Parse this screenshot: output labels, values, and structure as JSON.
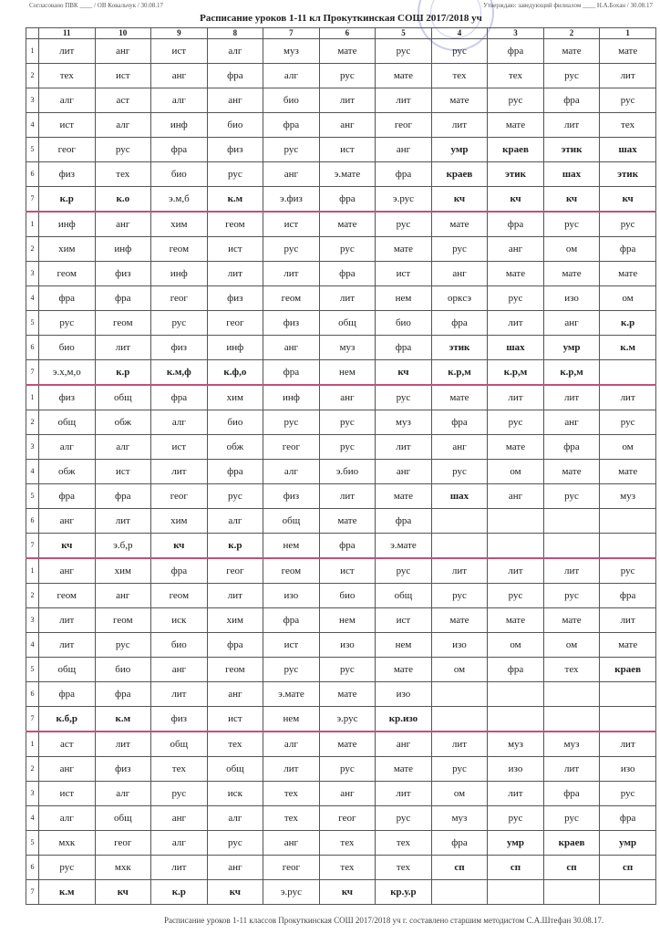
{
  "header": {
    "agreed": "Согласовано ПВК ____ / ОВ Ковальчук / 30.08.17",
    "title": "Расписание уроков 1-11 кл  Прокуткинская СОШ   2017/2018 уч",
    "approved": "Утверждаю: заведующий филиалом ____ Н.А.Бохан / 30.08.17"
  },
  "stamp_text": "Прокуткинская СОШ",
  "classes": [
    "11",
    "10",
    "9",
    "8",
    "7",
    "6",
    "5",
    "4",
    "3",
    "2",
    "1"
  ],
  "lesson_numbers": [
    "1",
    "2",
    "3",
    "4",
    "5",
    "6",
    "7"
  ],
  "schedule": {
    "11": [
      [
        "лит",
        "тех",
        "алг",
        "ист",
        "геог",
        "физ",
        "к.р"
      ],
      [
        "инф",
        "хим",
        "геом",
        "фра",
        "рус",
        "био",
        "э.х,м,о"
      ],
      [
        "физ",
        "общ",
        "алг",
        "обж",
        "фра",
        "анг",
        "кч"
      ],
      [
        "анг",
        "геом",
        "лит",
        "лит",
        "общ",
        "фра",
        "к.б,р"
      ],
      [
        "аст",
        "анг",
        "ист",
        "алг",
        "мхк",
        "рус",
        "к.м"
      ]
    ],
    "10": [
      [
        "анг",
        "ист",
        "аст",
        "алг",
        "рус",
        "тех",
        "к.о"
      ],
      [
        "анг",
        "инф",
        "физ",
        "фра",
        "геом",
        "лит",
        "к.р"
      ],
      [
        "общ",
        "обж",
        "алг",
        "ист",
        "фра",
        "лит",
        "э.б,р"
      ],
      [
        "хим",
        "анг",
        "геом",
        "рус",
        "био",
        "фра",
        "к.м"
      ],
      [
        "лит",
        "физ",
        "алг",
        "общ",
        "геог",
        "мхк",
        "кч"
      ]
    ],
    "9": [
      [
        "ист",
        "анг",
        "алг",
        "инф",
        "фра",
        "био",
        "э.м,б"
      ],
      [
        "хим",
        "геом",
        "инф",
        "геог",
        "рус",
        "физ",
        "к.м,ф"
      ],
      [
        "фра",
        "алг",
        "ист",
        "лит",
        "геог",
        "хим",
        "кч"
      ],
      [
        "фра",
        "геом",
        "иск",
        "био",
        "анг",
        "лит",
        "физ"
      ],
      [
        "общ",
        "тех",
        "рус",
        "анг",
        "алг",
        "лит",
        "к.р"
      ]
    ],
    "8": [
      [
        "алг",
        "фра",
        "анг",
        "био",
        "физ",
        "рус",
        "к.м"
      ],
      [
        "геом",
        "ист",
        "лит",
        "физ",
        "геог",
        "инф",
        "к.ф,о"
      ],
      [
        "хим",
        "био",
        "обж",
        "фра",
        "рус",
        "алг",
        "к.р"
      ],
      [
        "геог",
        "лит",
        "хим",
        "фра",
        "геом",
        "анг",
        "ист"
      ],
      [
        "тех",
        "общ",
        "иск",
        "алг",
        "рус",
        "анг",
        "кч"
      ]
    ],
    "7": [
      [
        "муз",
        "алг",
        "био",
        "фра",
        "рус",
        "анг",
        "э.физ"
      ],
      [
        "ист",
        "рус",
        "лит",
        "геом",
        "физ",
        "анг",
        "фра"
      ],
      [
        "инф",
        "рус",
        "геог",
        "алг",
        "физ",
        "общ",
        "нем"
      ],
      [
        "геом",
        "изо",
        "фра",
        "ист",
        "рус",
        "э.мате",
        "нем"
      ],
      [
        "алг",
        "лит",
        "тех",
        "тех",
        "анг",
        "геог",
        "э.рус"
      ]
    ],
    "6": [
      [
        "мате",
        "рус",
        "лит",
        "анг",
        "ист",
        "э.мате",
        "фра"
      ],
      [
        "мате",
        "рус",
        "фра",
        "лит",
        "общ",
        "муз",
        "нем"
      ],
      [
        "анг",
        "рус",
        "рус",
        "э.био",
        "лит",
        "мате",
        "фра"
      ],
      [
        "ист",
        "био",
        "нем",
        "изо",
        "рус",
        "мате",
        "э.рус"
      ],
      [
        "мате",
        "рус",
        "анг",
        "геог",
        "тех",
        "тех",
        "кч"
      ]
    ],
    "5": [
      [
        "рус",
        "мате",
        "лит",
        "геог",
        "анг",
        "фра",
        "э.рус"
      ],
      [
        "рус",
        "мате",
        "ист",
        "нем",
        "био",
        "фра",
        "кч"
      ],
      [
        "рус",
        "муз",
        "лит",
        "анг",
        "мате",
        "фра",
        "э.мате"
      ],
      [
        "рус",
        "общ",
        "ист",
        "нем",
        "мате",
        "изо",
        "кр.изо"
      ],
      [
        "анг",
        "мате",
        "лит",
        "рус",
        "тех",
        "тех",
        "кр.у.р"
      ]
    ],
    "4": [
      [
        "рус",
        "тех",
        "мате",
        "лит",
        "умр",
        "краев",
        "кч"
      ],
      [
        "мате",
        "рус",
        "анг",
        "оркcэ",
        "фра",
        "этик",
        "к.р,м"
      ],
      [
        "мате",
        "фра",
        "анг",
        "рус",
        "шах",
        "",
        ""
      ],
      [
        "лит",
        "рус",
        "мате",
        "изо",
        "ом",
        "",
        ""
      ],
      [
        "лит",
        "рус",
        "ом",
        "муз",
        "фра",
        "сп",
        ""
      ]
    ],
    "3": [
      [
        "фра",
        "тех",
        "рус",
        "мате",
        "краев",
        "этик",
        "кч"
      ],
      [
        "фра",
        "анг",
        "мате",
        "рус",
        "лит",
        "шах",
        "к.р,м"
      ],
      [
        "лит",
        "рус",
        "мате",
        "ом",
        "анг",
        "",
        ""
      ],
      [
        "лит",
        "рус",
        "мате",
        "ом",
        "фра",
        "",
        ""
      ],
      [
        "муз",
        "изо",
        "лит",
        "рус",
        "умр",
        "сп",
        ""
      ]
    ],
    "2": [
      [
        "мате",
        "рус",
        "фра",
        "лит",
        "этик",
        "шах",
        "кч"
      ],
      [
        "рус",
        "ом",
        "мате",
        "изо",
        "анг",
        "умр",
        "к.р,м"
      ],
      [
        "лит",
        "анг",
        "фра",
        "мате",
        "рус",
        "",
        ""
      ],
      [
        "лит",
        "рус",
        "мате",
        "ом",
        "тех",
        "",
        ""
      ],
      [
        "муз",
        "лит",
        "фра",
        "рус",
        "краев",
        "сп",
        ""
      ]
    ],
    "1": [
      [
        "мате",
        "лит",
        "рус",
        "тех",
        "шах",
        "этик",
        "кч"
      ],
      [
        "рус",
        "фра",
        "мате",
        "ом",
        "к.р",
        "к.м",
        ""
      ],
      [
        "лит",
        "рус",
        "ом",
        "мате",
        "муз",
        "",
        ""
      ],
      [
        "рус",
        "фра",
        "лит",
        "мате",
        "краев",
        "",
        ""
      ],
      [
        "лит",
        "изо",
        "рус",
        "фра",
        "умр",
        "сп",
        ""
      ]
    ]
  },
  "footer": "Расписание уроков 1-11 классов  Прокуткинская СОШ  2017/2018 уч г. составлено старшим методистом  С.А.Штефан 30.08.17.",
  "colors": {
    "day_separator": "#c2507a",
    "stamp": "#8c8fd0"
  }
}
